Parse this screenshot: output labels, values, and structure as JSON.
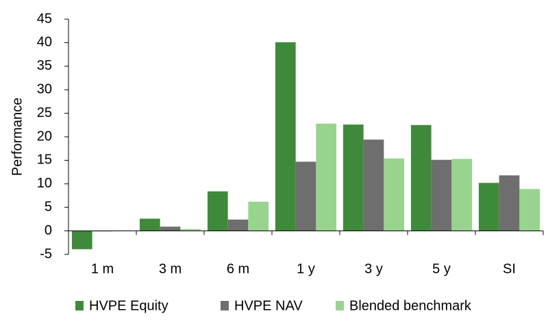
{
  "chart_data": {
    "type": "bar",
    "y_label": "Performance",
    "categories": [
      "1 m",
      "3 m",
      "6 m",
      "1 y",
      "3 y",
      "5 y",
      "SI"
    ],
    "series": [
      {
        "name": "HVPE Equity",
        "color": "#3f8a3a",
        "values": [
          -3.9,
          2.6,
          8.4,
          40.1,
          22.6,
          22.5,
          10.2
        ]
      },
      {
        "name": "HVPE NAV",
        "color": "#6e6e6e",
        "values": [
          -0.1,
          0.9,
          2.4,
          14.7,
          19.4,
          15.1,
          11.8
        ]
      },
      {
        "name": "Blended benchmark",
        "color": "#98d48e",
        "values": [
          0.1,
          0.4,
          6.2,
          22.8,
          15.4,
          15.3,
          8.9
        ]
      }
    ],
    "ylim": [
      -5,
      45
    ],
    "yticks": [
      -5,
      0,
      5,
      10,
      15,
      20,
      25,
      30,
      35,
      40,
      45
    ],
    "grid": false,
    "legend": "bottom"
  }
}
